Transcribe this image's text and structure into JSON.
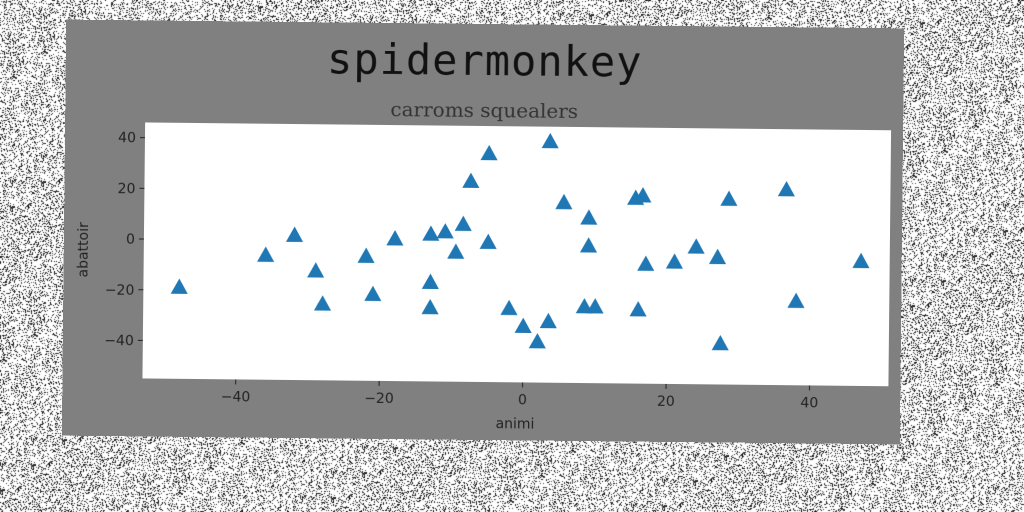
{
  "figure": {
    "title": "spidermonkey",
    "subtitle": "carroms squealers",
    "background": "#808080",
    "plot_background": "#ffffff",
    "marker_color": "#1f77b4"
  },
  "chart_data": {
    "type": "scatter",
    "title": "carroms squealers",
    "xlabel": "animi",
    "ylabel": "abattoir",
    "xlim": [
      -53,
      51
    ],
    "ylim": [
      -55,
      46
    ],
    "xticks": [
      -40,
      -20,
      0,
      20,
      40
    ],
    "yticks": [
      -40,
      -20,
      0,
      20,
      40
    ],
    "grid": false,
    "marker": "triangle-up",
    "x": [
      -48,
      -36,
      -32,
      -29,
      -28,
      -22,
      -21,
      -18,
      -13,
      -13,
      -13,
      -11,
      -9.5,
      -8.5,
      -7.5,
      -5,
      -5,
      -2,
      0,
      2,
      3.5,
      3.5,
      5.5,
      8.5,
      9,
      9,
      10,
      15.5,
      16,
      16.5,
      17,
      21,
      24,
      27,
      27.5,
      28.5,
      36.5,
      38,
      47
    ],
    "y": [
      -19,
      -6,
      2,
      -12,
      -25,
      -6,
      -21,
      1,
      3,
      -16,
      -26,
      4,
      -4,
      7,
      24,
      35,
      0,
      -26,
      -33,
      -39,
      40,
      -31,
      16,
      -25,
      10,
      -1,
      -25,
      18,
      -26,
      19,
      -8,
      -7,
      -1,
      -5,
      -39,
      18,
      22,
      -22,
      -6
    ]
  }
}
